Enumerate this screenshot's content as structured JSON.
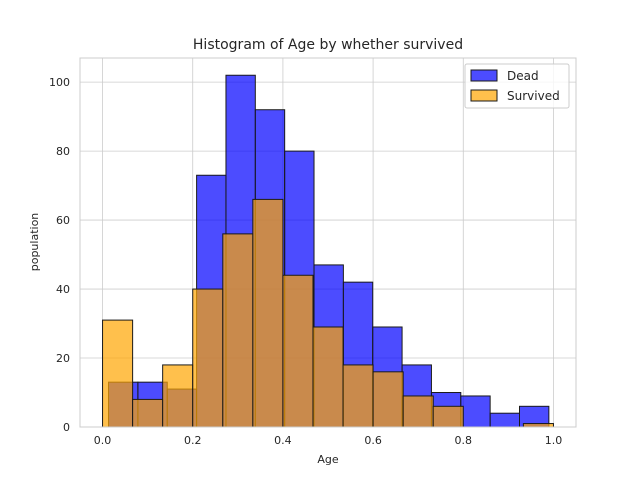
{
  "chart_data": {
    "type": "bar",
    "title": "Histogram of Age by whether survived",
    "xlabel": "Age",
    "ylabel": "population",
    "xlim": [
      -0.05,
      1.05
    ],
    "ylim": [
      0,
      107
    ],
    "xticks": [
      0.0,
      0.2,
      0.4,
      0.6,
      0.8,
      1.0
    ],
    "xtick_labels": [
      "0.0",
      "0.2",
      "0.4",
      "0.6",
      "0.8",
      "1.0"
    ],
    "yticks": [
      0,
      20,
      40,
      60,
      80,
      100
    ],
    "ytick_labels": [
      "0",
      "20",
      "40",
      "60",
      "80",
      "100"
    ],
    "grid": true,
    "legend_position": "top-right",
    "series": [
      {
        "name": "Dead",
        "color": "#0000ff",
        "bin_edges": [
          0.0133,
          0.0784,
          0.1435,
          0.2086,
          0.2737,
          0.3388,
          0.4039,
          0.469,
          0.5341,
          0.5992,
          0.6643,
          0.7294,
          0.7945,
          0.8596,
          0.9247
        ],
        "values": [
          13,
          13,
          11,
          73,
          102,
          92,
          80,
          47,
          42,
          29,
          18,
          10,
          9,
          4,
          6
        ]
      },
      {
        "name": "Survived",
        "color": "#ffa500",
        "bin_edges": [
          0.0,
          0.0667,
          0.1333,
          0.2,
          0.2667,
          0.3333,
          0.4,
          0.4667,
          0.5333,
          0.6,
          0.6667,
          0.7333,
          0.8,
          0.8667,
          0.9333,
          1.0
        ],
        "values": [
          31,
          8,
          18,
          40,
          56,
          66,
          44,
          29,
          18,
          16,
          9,
          6,
          0,
          0,
          1
        ]
      }
    ]
  }
}
